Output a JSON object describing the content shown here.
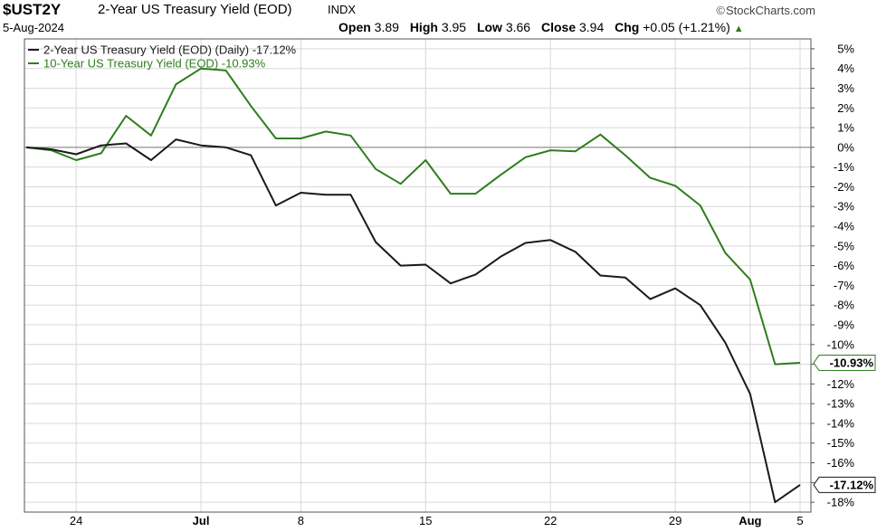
{
  "header": {
    "symbol": "$UST2Y",
    "description": "2-Year US Treasury Yield (EOD)",
    "exchange": "INDX",
    "brand": "StockCharts.com",
    "brand_icon": "copyright-icon",
    "date": "5-Aug-2024",
    "open_label": "Open",
    "open_value": "3.89",
    "high_label": "High",
    "high_value": "3.95",
    "low_label": "Low",
    "low_value": "3.66",
    "close_label": "Close",
    "close_value": "3.94",
    "chg_label": "Chg",
    "chg_value": "+0.05 (+1.21%)",
    "chg_icon": "up-triangle-icon",
    "chg_color": "#2a7a1a"
  },
  "chart_data": {
    "type": "line",
    "ylim": [
      -18.5,
      5.5
    ],
    "y_ticks": [
      5,
      4,
      3,
      2,
      1,
      0,
      -1,
      -2,
      -3,
      -4,
      -5,
      -6,
      -7,
      -8,
      -9,
      -10,
      -11,
      -12,
      -13,
      -14,
      -15,
      -16,
      -17,
      -18
    ],
    "y_tick_labels": [
      "5%",
      "4%",
      "3%",
      "2%",
      "1%",
      "0%",
      "-1%",
      "-2%",
      "-3%",
      "-4%",
      "-5%",
      "-6%",
      "-7%",
      "-8%",
      "-9%",
      "-10%",
      "-11%",
      "-12%",
      "-13%",
      "-14%",
      "-15%",
      "-16%",
      "-17%",
      "-18%"
    ],
    "x_tick_labels": [
      "24",
      "Jul",
      "8",
      "15",
      "22",
      "29",
      "Aug",
      "5"
    ],
    "x_tick_dates": [
      "2024-06-24",
      "2024-07-01",
      "2024-07-08",
      "2024-07-15",
      "2024-07-22",
      "2024-07-29",
      "2024-08-01",
      "2024-08-05"
    ],
    "x": [
      "2024-06-20",
      "2024-06-21",
      "2024-06-24",
      "2024-06-25",
      "2024-06-26",
      "2024-06-27",
      "2024-06-28",
      "2024-07-01",
      "2024-07-02",
      "2024-07-03",
      "2024-07-05",
      "2024-07-08",
      "2024-07-09",
      "2024-07-10",
      "2024-07-11",
      "2024-07-12",
      "2024-07-15",
      "2024-07-16",
      "2024-07-17",
      "2024-07-18",
      "2024-07-19",
      "2024-07-22",
      "2024-07-23",
      "2024-07-24",
      "2024-07-25",
      "2024-07-26",
      "2024-07-29",
      "2024-07-30",
      "2024-07-31",
      "2024-08-01",
      "2024-08-02",
      "2024-08-05"
    ],
    "zero_line": 0,
    "grid": true,
    "legend_position": "top-left",
    "series": [
      {
        "name": "2-Year US Treasury Yield (EOD) (Daily) -17.12%",
        "color": "#1a1a1a",
        "last_label": "-17.12%",
        "values": [
          0.0,
          -0.1,
          -0.35,
          0.1,
          0.2,
          -0.65,
          0.4,
          0.1,
          0.0,
          -0.4,
          -2.95,
          -2.3,
          -2.4,
          -2.4,
          -4.8,
          -6.0,
          -5.95,
          -6.9,
          -6.45,
          -5.55,
          -4.85,
          -4.7,
          -5.3,
          -6.5,
          -6.6,
          -7.7,
          -7.15,
          -8.0,
          -9.9,
          -12.5,
          -18.0,
          -17.12
        ]
      },
      {
        "name": "10-Year US Treasury Yield (EOD) -10.93%",
        "color": "#2e7d1e",
        "last_label": "-10.93%",
        "values": [
          0.0,
          -0.15,
          -0.65,
          -0.3,
          1.6,
          0.6,
          3.2,
          4.0,
          3.9,
          2.1,
          0.45,
          0.45,
          0.8,
          0.6,
          -1.1,
          -1.85,
          -0.65,
          -2.35,
          -2.35,
          -1.4,
          -0.5,
          -0.15,
          -0.2,
          0.65,
          -0.4,
          -1.55,
          -1.95,
          -2.95,
          -5.35,
          -6.7,
          -11.0,
          -10.93
        ]
      }
    ]
  }
}
